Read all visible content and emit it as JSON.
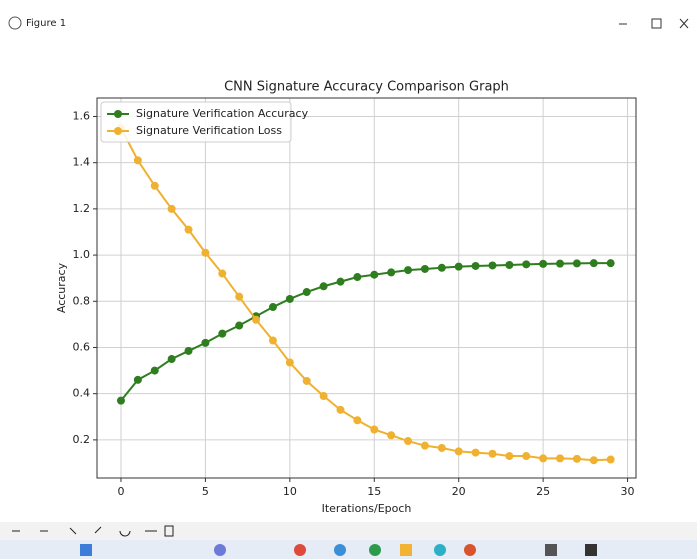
{
  "window": {
    "title": "Figure 1"
  },
  "chart_data": {
    "type": "line",
    "title": "CNN Signature Accuracy Comparison Graph",
    "x_label": "Iterations/Epoch",
    "y_label": "Accuracy",
    "x": [
      0,
      1,
      2,
      3,
      4,
      5,
      6,
      7,
      8,
      9,
      10,
      11,
      12,
      13,
      14,
      15,
      16,
      17,
      18,
      19,
      20,
      21,
      22,
      23,
      24,
      25,
      26,
      27,
      28,
      29
    ],
    "series": [
      {
        "name": "Signature Verification Accuracy",
        "color": "#2e7d1f",
        "values": [
          0.37,
          0.46,
          0.5,
          0.55,
          0.585,
          0.62,
          0.66,
          0.695,
          0.735,
          0.775,
          0.81,
          0.84,
          0.865,
          0.885,
          0.905,
          0.915,
          0.925,
          0.935,
          0.94,
          0.945,
          0.95,
          0.953,
          0.955,
          0.957,
          0.96,
          0.962,
          0.963,
          0.964,
          0.965,
          0.965
        ]
      },
      {
        "name": "Signature Verification Loss",
        "color": "#f0b030",
        "values": [
          1.55,
          1.41,
          1.3,
          1.2,
          1.11,
          1.01,
          0.92,
          0.82,
          0.72,
          0.63,
          0.535,
          0.455,
          0.39,
          0.33,
          0.285,
          0.245,
          0.22,
          0.195,
          0.175,
          0.165,
          0.15,
          0.145,
          0.14,
          0.13,
          0.13,
          0.12,
          0.12,
          0.118,
          0.112,
          0.115
        ]
      }
    ],
    "xlim": [
      -1.42,
      30.5
    ],
    "xticks": [
      0,
      5,
      10,
      15,
      20,
      25,
      30
    ],
    "ylim": [
      0.035,
      1.68
    ],
    "yticks": [
      0.2,
      0.4,
      0.6,
      0.8,
      {
        "value": 1,
        "label": "1.0"
      },
      1.2,
      1.4,
      1.6
    ],
    "grid": true,
    "legend": "upper-left"
  }
}
